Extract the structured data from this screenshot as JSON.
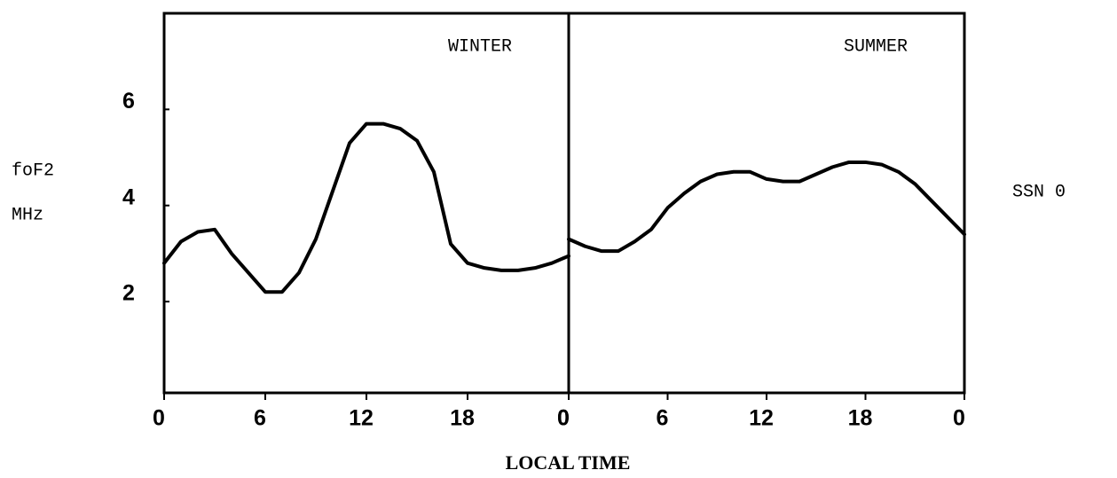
{
  "chart_data": [
    {
      "type": "line",
      "title": "WINTER",
      "x": [
        0,
        1,
        2,
        3,
        4,
        5,
        6,
        7,
        8,
        9,
        10,
        11,
        12,
        13,
        14,
        15,
        16,
        17,
        18,
        19,
        20,
        21,
        22,
        23,
        24
      ],
      "values": [
        2.8,
        3.25,
        3.45,
        3.5,
        3.0,
        2.6,
        2.2,
        2.2,
        2.6,
        3.3,
        4.3,
        5.3,
        5.7,
        5.7,
        5.6,
        5.35,
        4.7,
        3.2,
        2.8,
        2.7,
        2.65,
        2.65,
        2.7,
        2.8,
        2.95
      ],
      "color": "#000000",
      "xlim": [
        0,
        24
      ],
      "xticks": [
        0,
        6,
        12,
        18,
        {
          "value": 24,
          "label": "0"
        }
      ],
      "ylim": [
        0.1,
        8
      ],
      "yticks": [
        2,
        4,
        6
      ]
    },
    {
      "type": "line",
      "title": "SUMMER",
      "x": [
        0,
        1,
        2,
        3,
        4,
        5,
        6,
        7,
        8,
        9,
        10,
        11,
        12,
        13,
        14,
        15,
        16,
        17,
        18,
        19,
        20,
        21,
        22,
        23,
        24
      ],
      "values": [
        3.3,
        3.15,
        3.05,
        3.05,
        3.25,
        3.5,
        3.95,
        4.25,
        4.5,
        4.65,
        4.7,
        4.7,
        4.55,
        4.5,
        4.5,
        4.65,
        4.8,
        4.9,
        4.9,
        4.85,
        4.7,
        4.45,
        4.1,
        3.75,
        3.4
      ],
      "color": "#000000",
      "xlim": [
        0,
        24
      ],
      "xticks": [
        0,
        6,
        12,
        18,
        {
          "value": 24,
          "label": "0"
        }
      ],
      "ylim": [
        0.1,
        8
      ]
    }
  ],
  "xlabel": "LOCAL TIME",
  "ylabel": [
    "foF2",
    "MHz"
  ],
  "annotation": "SSN 0"
}
